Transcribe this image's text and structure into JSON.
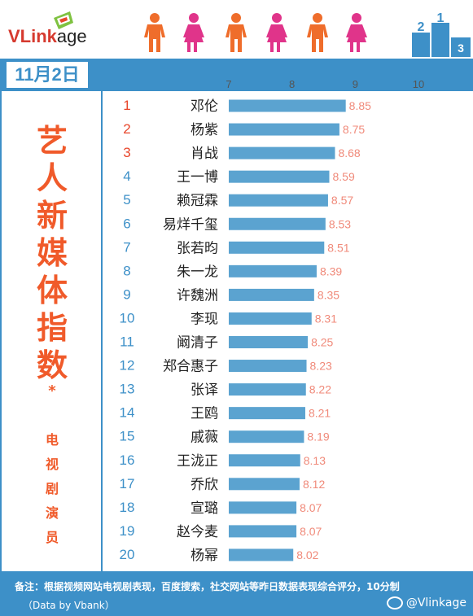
{
  "header": {
    "logo_prefix": "VLink",
    "logo_suffix": "age",
    "colors": {
      "male": "#ef6d2b",
      "female": "#e0348a",
      "podium": "#3d90c8"
    }
  },
  "date": "11月2日",
  "title_chars": [
    "艺",
    "人",
    "新",
    "媒",
    "体",
    "指",
    "数"
  ],
  "title_star": "*",
  "subtitle_chars": [
    "电",
    "视",
    "剧",
    "演",
    "员"
  ],
  "chart_data": {
    "type": "bar",
    "orientation": "horizontal",
    "xlim": [
      7,
      10
    ],
    "xticks": [
      7,
      8,
      9,
      10
    ],
    "ranks": [
      "1",
      "2",
      "3",
      "4",
      "5",
      "6",
      "7",
      "8",
      "9",
      "10",
      "11",
      "12",
      "13",
      "14",
      "15",
      "16",
      "17",
      "18",
      "19",
      "20"
    ],
    "categories": [
      "邓伦",
      "杨紫",
      "肖战",
      "王一博",
      "赖冠霖",
      "易烊千玺",
      "张若昀",
      "朱一龙",
      "许魏洲",
      "李现",
      "阚清子",
      "郑合惠子",
      "张译",
      "王鸥",
      "戚薇",
      "王泷正",
      "乔欣",
      "宣璐",
      "赵今麦",
      "杨幂"
    ],
    "values": [
      8.85,
      8.75,
      8.68,
      8.59,
      8.57,
      8.53,
      8.51,
      8.39,
      8.35,
      8.31,
      8.25,
      8.23,
      8.22,
      8.21,
      8.19,
      8.13,
      8.12,
      8.07,
      8.07,
      8.02
    ],
    "value_labels": [
      "8.85",
      "8.75",
      "8.68",
      "8.59",
      "8.57",
      "8.53",
      "8.51",
      "8.39",
      "8.35",
      "8.31",
      "8.25",
      "8.23",
      "8.22",
      "8.21",
      "8.19",
      "8.13",
      "8.12",
      "8.07",
      "8.07",
      "8.02"
    ],
    "colors": {
      "bar": "#5ba3d0",
      "value": "#f08a7a",
      "rank_top": "#e8452a",
      "rank": "#3d90c8",
      "tick": "#555555"
    }
  },
  "footer": {
    "note": "备注：根据视频网站电视剧表现，百度搜索，社交网站等昨日数据表现综合评分，10分制",
    "source": "（Data by Vbank）",
    "handle": "@Vlinkage"
  }
}
